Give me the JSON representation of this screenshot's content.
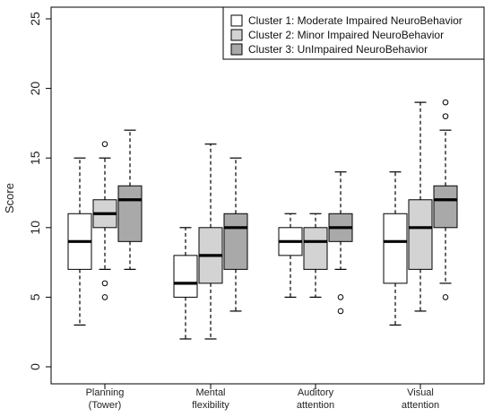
{
  "chart_data": {
    "type": "box",
    "ylabel": "Score",
    "ylim": [
      0,
      25
    ],
    "yticks": [
      0,
      5,
      10,
      15,
      20,
      25
    ],
    "categories": [
      [
        "Planning",
        "(Tower)"
      ],
      [
        "Mental",
        "flexibility"
      ],
      [
        "Auditory",
        "attention"
      ],
      [
        "Visual",
        "attention"
      ]
    ],
    "legend_position": "top-right",
    "series": [
      {
        "name": "Cluster 1: Moderate Impaired NeuroBehavior",
        "color": "#ffffff",
        "boxes": [
          {
            "whisker_low": 3,
            "q1": 7,
            "median": 9,
            "q3": 11,
            "whisker_high": 15,
            "outliers": []
          },
          {
            "whisker_low": 2,
            "q1": 5,
            "median": 6,
            "q3": 8,
            "whisker_high": 10,
            "outliers": []
          },
          {
            "whisker_low": 5,
            "q1": 8,
            "median": 9,
            "q3": 10,
            "whisker_high": 11,
            "outliers": []
          },
          {
            "whisker_low": 3,
            "q1": 6,
            "median": 9,
            "q3": 11,
            "whisker_high": 14,
            "outliers": []
          }
        ]
      },
      {
        "name": "Cluster 2: Minor Impaired NeuroBehavior",
        "color": "#d3d3d3",
        "boxes": [
          {
            "whisker_low": 7,
            "q1": 10,
            "median": 11,
            "q3": 12,
            "whisker_high": 15,
            "outliers": [
              16,
              6,
              5
            ]
          },
          {
            "whisker_low": 2,
            "q1": 6,
            "median": 8,
            "q3": 10,
            "whisker_high": 16,
            "outliers": []
          },
          {
            "whisker_low": 5,
            "q1": 7,
            "median": 9,
            "q3": 10,
            "whisker_high": 11,
            "outliers": []
          },
          {
            "whisker_low": 4,
            "q1": 7,
            "median": 10,
            "q3": 12,
            "whisker_high": 19,
            "outliers": []
          }
        ]
      },
      {
        "name": "Cluster 3: UnImpaired NeuroBehavior",
        "color": "#a9a9a9",
        "boxes": [
          {
            "whisker_low": 7,
            "q1": 9,
            "median": 12,
            "q3": 13,
            "whisker_high": 17,
            "outliers": []
          },
          {
            "whisker_low": 4,
            "q1": 7,
            "median": 10,
            "q3": 11,
            "whisker_high": 15,
            "outliers": []
          },
          {
            "whisker_low": 7,
            "q1": 9,
            "median": 10,
            "q3": 11,
            "whisker_high": 14,
            "outliers": [
              5,
              4
            ]
          },
          {
            "whisker_low": 6,
            "q1": 10,
            "median": 12,
            "q3": 13,
            "whisker_high": 17,
            "outliers": [
              19,
              18,
              5
            ]
          }
        ]
      }
    ]
  }
}
